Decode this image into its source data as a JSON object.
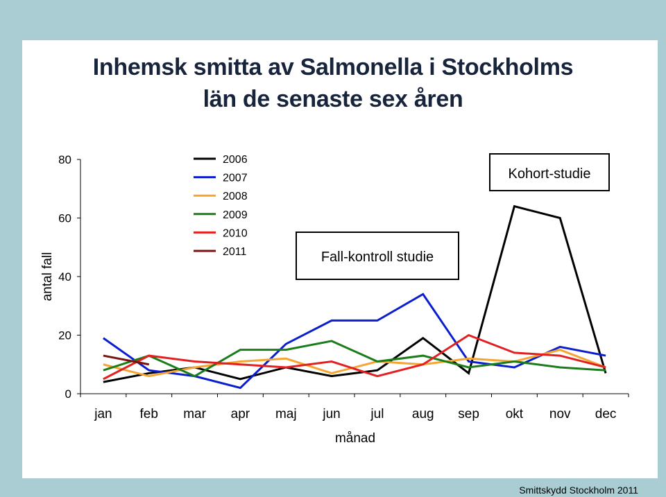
{
  "title_line1": "Inhemsk smitta av Salmonella i Stockholms",
  "title_line2": "län de senaste sex åren",
  "credit": "Smittskydd Stockholm 2011",
  "chart_data": {
    "type": "line",
    "title": "Inhemsk smitta av Salmonella i Stockholms län de senaste sex åren",
    "xlabel": "månad",
    "ylabel": "antal fall",
    "ylim": [
      0,
      80
    ],
    "yticks": [
      0,
      20,
      40,
      60,
      80
    ],
    "categories": [
      "jan",
      "feb",
      "mar",
      "apr",
      "maj",
      "jun",
      "jul",
      "aug",
      "sep",
      "okt",
      "nov",
      "dec"
    ],
    "grid": false,
    "legend": "top-left",
    "series": [
      {
        "name": "2006",
        "color": "#000000",
        "values": [
          4,
          7,
          9,
          5,
          9,
          6,
          8,
          19,
          7,
          64,
          60,
          7
        ]
      },
      {
        "name": "2007",
        "color": "#0a1ecf",
        "values": [
          19,
          8,
          6,
          2,
          17,
          25,
          25,
          34,
          11,
          9,
          16,
          13
        ]
      },
      {
        "name": "2008",
        "color": "#f5a531",
        "values": [
          10,
          6,
          9,
          11,
          12,
          7,
          11,
          10,
          12,
          11,
          15,
          9
        ]
      },
      {
        "name": "2009",
        "color": "#1a7d1a",
        "values": [
          8,
          13,
          6,
          15,
          15,
          18,
          11,
          13,
          9,
          11,
          9,
          8
        ]
      },
      {
        "name": "2010",
        "color": "#e32020",
        "values": [
          5,
          13,
          11,
          10,
          9,
          11,
          6,
          10,
          20,
          14,
          13,
          9
        ]
      },
      {
        "name": "2011",
        "color": "#7a1212",
        "values": [
          13,
          10,
          null,
          null,
          null,
          null,
          null,
          null,
          null,
          null,
          null,
          null
        ]
      }
    ],
    "annotations": [
      {
        "text": "Fall-kontroll studie"
      },
      {
        "text": "Kohort-studie"
      }
    ]
  }
}
